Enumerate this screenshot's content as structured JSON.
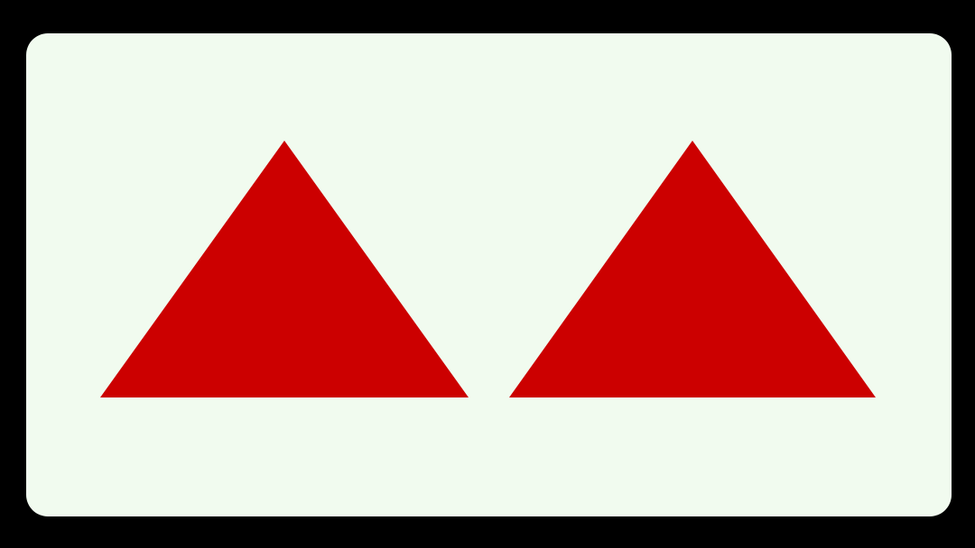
{
  "sign": {
    "background_color": "#f1fbef",
    "frame_color": "#000000",
    "triangle_color": "#cc0000",
    "symbols": [
      {
        "name": "left-triangle-icon",
        "shape": "triangle-up"
      },
      {
        "name": "right-triangle-icon",
        "shape": "triangle-up"
      }
    ]
  }
}
